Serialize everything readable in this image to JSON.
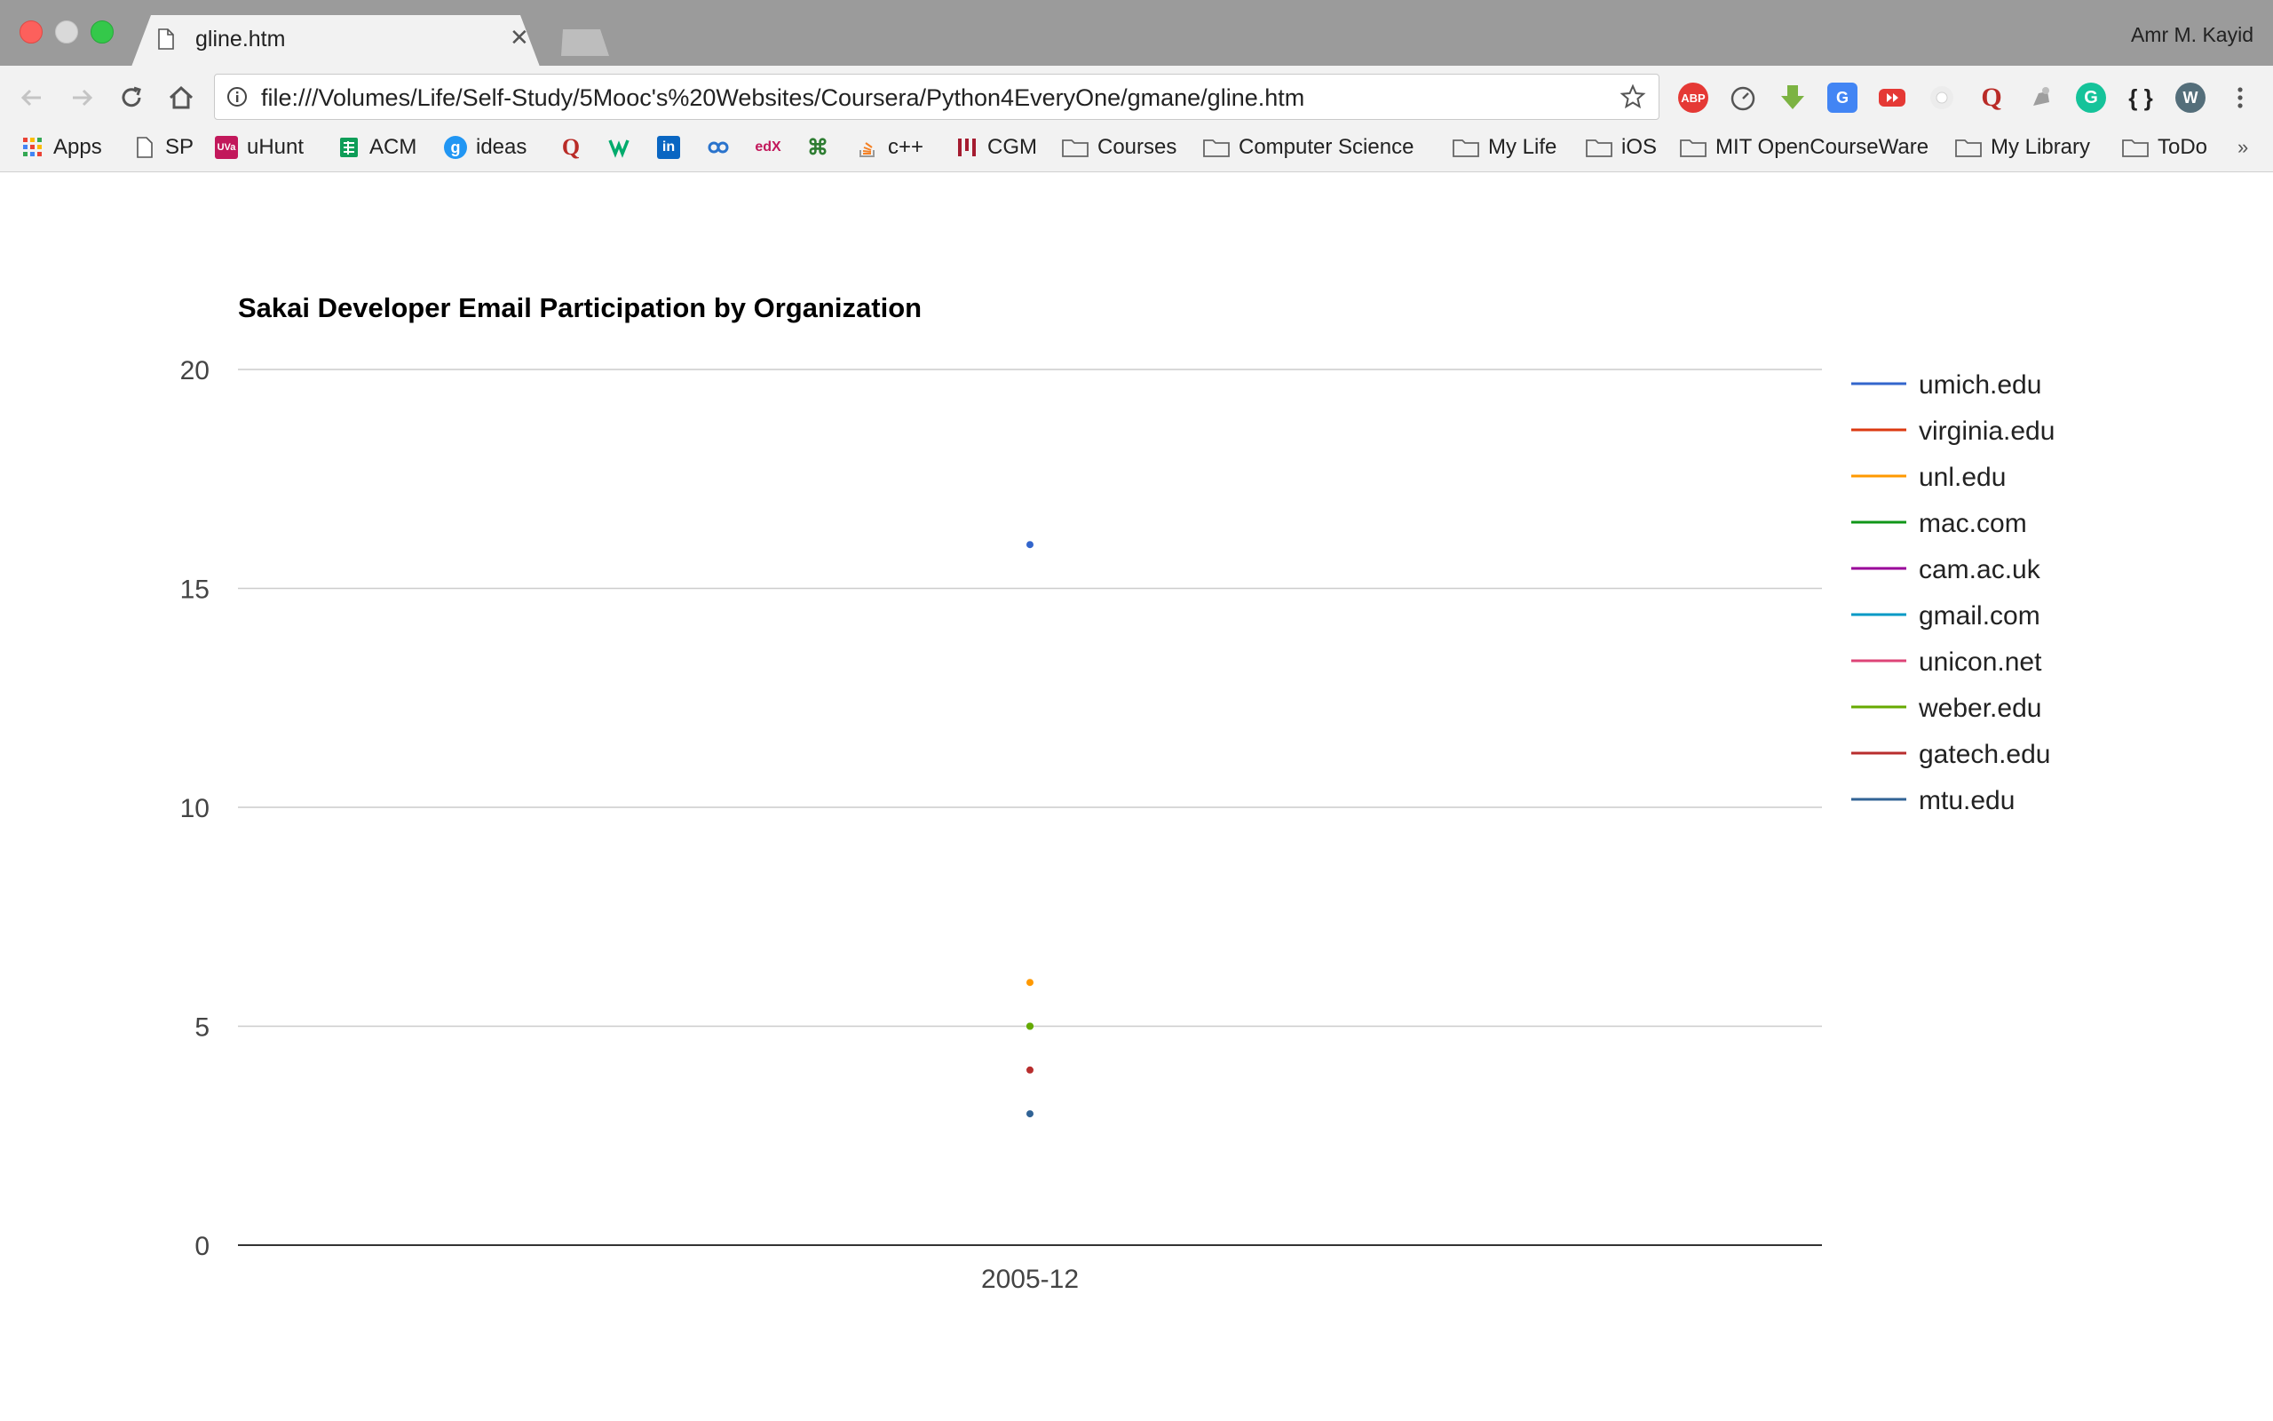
{
  "window": {
    "tab_title": "gline.htm",
    "profile_name": "Amr M. Kayid"
  },
  "address_bar": {
    "url": "file:///Volumes/Life/Self-Study/5Mooc's%20Websites/Coursera/Python4EveryOne/gmane/gline.htm"
  },
  "extensions": [
    {
      "name": "adblock-plus",
      "label": "ABP",
      "color": "#e53935"
    },
    {
      "name": "speed-dial",
      "label": "",
      "color": "#ffffff"
    },
    {
      "name": "downloader",
      "label": "",
      "color": "#7cb342"
    },
    {
      "name": "google-translate",
      "label": "",
      "color": "#4285f4"
    },
    {
      "name": "youtube",
      "label": "",
      "color": "#e53935"
    },
    {
      "name": "record",
      "label": "",
      "color": "#e0e0e0"
    },
    {
      "name": "quora",
      "label": "Q",
      "color": "#b92b27"
    },
    {
      "name": "cleaner",
      "label": "",
      "color": "#9e9e9e"
    },
    {
      "name": "grammarly",
      "label": "G",
      "color": "#15c39a"
    },
    {
      "name": "json-viewer",
      "label": "{ }",
      "color": "#222222"
    },
    {
      "name": "wappalyzer",
      "label": "W",
      "color": "#546e7a"
    }
  ],
  "bookmarks": {
    "apps": "Apps",
    "sp": "SP",
    "uhunt": "uHunt",
    "acm": "ACM",
    "ideas": "ideas",
    "cpp": "c++",
    "cgm": "CGM",
    "courses": "Courses",
    "computer_science": "Computer Science",
    "my_life": "My Life",
    "ios": "iOS",
    "mit": "MIT OpenCourseWare",
    "my_library": "My Library",
    "todo": "ToDo",
    "more": "»"
  },
  "chart_data": {
    "type": "scatter",
    "title": "Sakai Developer Email Participation by Organization",
    "categories": [
      "2005-12"
    ],
    "ylim": [
      0,
      20
    ],
    "yticks": [
      0,
      5,
      10,
      15,
      20
    ],
    "grid": true,
    "legend_position": "right",
    "series": [
      {
        "name": "umich.edu",
        "color": "#3366cc",
        "values": [
          16
        ]
      },
      {
        "name": "virginia.edu",
        "color": "#dc3912",
        "values": [
          null
        ]
      },
      {
        "name": "unl.edu",
        "color": "#ff9900",
        "values": [
          6
        ]
      },
      {
        "name": "mac.com",
        "color": "#109618",
        "values": [
          5
        ]
      },
      {
        "name": "cam.ac.uk",
        "color": "#990099",
        "values": [
          null
        ]
      },
      {
        "name": "gmail.com",
        "color": "#0099c6",
        "values": [
          null
        ]
      },
      {
        "name": "unicon.net",
        "color": "#dd4477",
        "values": [
          null
        ]
      },
      {
        "name": "weber.edu",
        "color": "#66aa00",
        "values": [
          5
        ]
      },
      {
        "name": "gatech.edu",
        "color": "#b82e2e",
        "values": [
          4
        ]
      },
      {
        "name": "mtu.edu",
        "color": "#316395",
        "values": [
          3
        ]
      }
    ]
  }
}
